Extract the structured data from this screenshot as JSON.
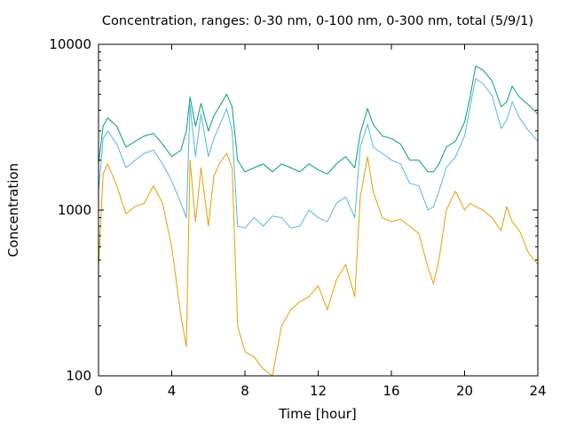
{
  "chart_data": {
    "type": "line",
    "title": "Concentration, ranges: 0-30 nm, 0-100 nm, 0-300 nm, total (5/9/1)",
    "xlabel": "Time [hour]",
    "ylabel": "Concentration",
    "xlim": [
      0,
      24
    ],
    "ylim": [
      100,
      10000
    ],
    "yscale": "log",
    "grid": false,
    "x_ticks": [
      0,
      4,
      8,
      12,
      16,
      20,
      24
    ],
    "x_tick_labels": [
      "0",
      "4",
      "8",
      "12",
      "16",
      "20",
      "24"
    ],
    "y_ticks": [
      100,
      1000,
      10000
    ],
    "y_tick_labels": [
      "100",
      "1000",
      "10000"
    ],
    "x": [
      0,
      0.25,
      0.5,
      1,
      1.5,
      2,
      2.5,
      3,
      3.5,
      4,
      4.5,
      4.8,
      5,
      5.3,
      5.6,
      6,
      6.3,
      6.6,
      7,
      7.3,
      7.6,
      8,
      8.5,
      9,
      9.5,
      10,
      10.5,
      11,
      11.5,
      12,
      12.5,
      13,
      13.5,
      14,
      14.3,
      14.7,
      15,
      15.5,
      16,
      16.5,
      17,
      17.5,
      18,
      18.3,
      18.6,
      19,
      19.5,
      20,
      20.3,
      20.6,
      21,
      21.5,
      22,
      22.3,
      22.6,
      23,
      23.5,
      24
    ],
    "series": [
      {
        "color": "#009e73",
        "values": [
          1900,
          3200,
          3600,
          3200,
          2400,
          2600,
          2800,
          2900,
          2500,
          2100,
          2300,
          3000,
          4800,
          3200,
          4400,
          3000,
          3700,
          4200,
          5000,
          4200,
          2000,
          1700,
          1800,
          1900,
          1700,
          1900,
          1800,
          1700,
          1900,
          1750,
          1650,
          1900,
          2100,
          1800,
          2900,
          4100,
          3300,
          2800,
          2700,
          2500,
          2000,
          2000,
          1700,
          1700,
          1900,
          2400,
          2600,
          3400,
          4800,
          7400,
          7000,
          6000,
          4200,
          4500,
          5600,
          4800,
          4300,
          3800
        ]
      },
      {
        "color": "#56b4e9",
        "values": [
          1300,
          2700,
          3000,
          2500,
          1800,
          2000,
          2200,
          2300,
          1900,
          1500,
          1100,
          900,
          4300,
          2100,
          3800,
          2100,
          2700,
          3200,
          4100,
          3000,
          800,
          780,
          900,
          800,
          920,
          900,
          780,
          800,
          1000,
          900,
          850,
          1100,
          1200,
          900,
          2400,
          3300,
          2400,
          2200,
          2000,
          1900,
          1450,
          1400,
          1000,
          1050,
          1300,
          1800,
          2100,
          2800,
          4200,
          6200,
          5800,
          4900,
          3100,
          3500,
          4500,
          3600,
          3000,
          2600
        ]
      },
      {
        "color": "#e69f00",
        "values": [
          450,
          1650,
          1900,
          1400,
          950,
          1050,
          1100,
          1400,
          1100,
          600,
          230,
          150,
          2000,
          850,
          1800,
          800,
          1600,
          1900,
          2200,
          1800,
          200,
          140,
          130,
          110,
          100,
          200,
          250,
          280,
          300,
          350,
          250,
          380,
          470,
          300,
          1200,
          2100,
          1300,
          900,
          850,
          880,
          800,
          720,
          450,
          360,
          500,
          1000,
          1300,
          1000,
          1100,
          1050,
          1000,
          900,
          750,
          1050,
          850,
          750,
          550,
          470
        ]
      }
    ]
  }
}
